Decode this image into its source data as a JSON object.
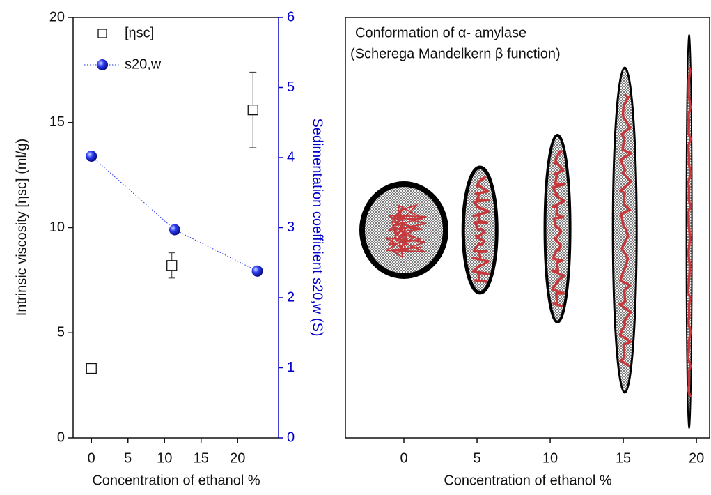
{
  "chart_data": [
    {
      "type": "scatter",
      "x_label": "Concentration of ethanol %",
      "y_label": "Intrinsic viscosity [ηsc] (ml/g)",
      "y2_label": "Sedimentation coefficient s20,w (S)",
      "xlim": [
        -2.5,
        25.6
      ],
      "xticks": [
        0,
        5,
        10,
        15,
        20
      ],
      "ylim": [
        0,
        20
      ],
      "yticks": [
        0,
        5,
        10,
        15,
        20
      ],
      "y2lim": [
        0,
        6
      ],
      "y2ticks": [
        0,
        1,
        2,
        3,
        4,
        5,
        6
      ],
      "y2_color": "#0000c8",
      "series": [
        {
          "name": "[ηsc]",
          "color": "#111111",
          "marker": "square",
          "x": [
            0,
            11,
            22.1
          ],
          "values": [
            3.3,
            8.2,
            15.6
          ],
          "errors": [
            0,
            0.6,
            1.8
          ]
        },
        {
          "name": "s20,w",
          "color": "#1f2fe0",
          "marker": "sphere",
          "axis": "y2",
          "x": [
            0,
            11.4,
            22.7
          ],
          "values": [
            4.02,
            2.97,
            2.38
          ]
        }
      ]
    },
    {
      "type": "ellipse",
      "title": "Conformation of α- amylase",
      "subtitle": "(Scherega Mandelkern β function)",
      "x_label": "Concentration of ethanol %",
      "xlim": [
        -4,
        20.9
      ],
      "xticks": [
        0,
        5,
        10,
        15,
        20
      ],
      "x": [
        0,
        5.2,
        10.5,
        15.1,
        19.5
      ]
    }
  ]
}
